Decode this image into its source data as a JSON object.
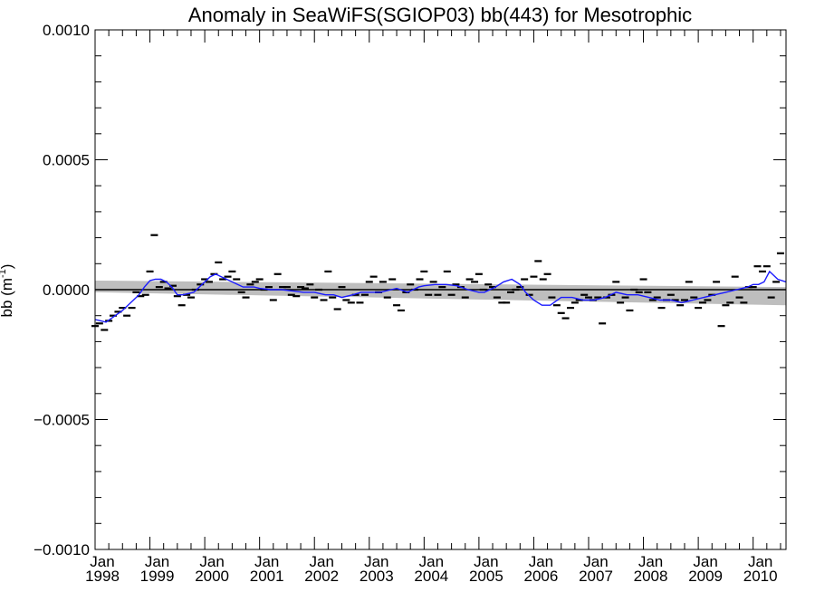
{
  "chart_data": {
    "type": "line",
    "title": "Anomaly in SeaWiFS(SGIOP03) bb(443) for Mesotrophic",
    "ylabel": "bb (m",
    "ylabel_sup": "-1",
    "ylabel_close": ")",
    "xlim": [
      1998.0,
      2010.6
    ],
    "ylim": [
      -0.001,
      0.001
    ],
    "y_ticks": [
      {
        "value": 0.001,
        "label": "0.0010"
      },
      {
        "value": 0.0005,
        "label": "0.0005"
      },
      {
        "value": 0.0,
        "label": "0.0000"
      },
      {
        "value": -0.0005,
        "label": "−0.0005"
      },
      {
        "value": -0.001,
        "label": "−0.0010"
      }
    ],
    "x_ticks": [
      {
        "value": 1998,
        "month": "Jan",
        "year": "1998"
      },
      {
        "value": 1999,
        "month": "Jan",
        "year": "1999"
      },
      {
        "value": 2000,
        "month": "Jan",
        "year": "2000"
      },
      {
        "value": 2001,
        "month": "Jan",
        "year": "2001"
      },
      {
        "value": 2002,
        "month": "Jan",
        "year": "2002"
      },
      {
        "value": 2003,
        "month": "Jan",
        "year": "2003"
      },
      {
        "value": 2004,
        "month": "Jan",
        "year": "2004"
      },
      {
        "value": 2005,
        "month": "Jan",
        "year": "2005"
      },
      {
        "value": 2006,
        "month": "Jan",
        "year": "2006"
      },
      {
        "value": 2007,
        "month": "Jan",
        "year": "2007"
      },
      {
        "value": 2008,
        "month": "Jan",
        "year": "2008"
      },
      {
        "value": 2009,
        "month": "Jan",
        "year": "2009"
      },
      {
        "value": 2010,
        "month": "Jan",
        "year": "2010"
      }
    ],
    "zero_line": 0.0,
    "trend_band": {
      "x": [
        1998.0,
        2010.6
      ],
      "upper": [
        3.5e-05,
        1e-05
      ],
      "lower": [
        -1e-05,
        -6e-05
      ]
    },
    "colors": {
      "smooth": "#1a1aff",
      "band": "#bebebe",
      "marks": "#000000"
    },
    "monthly_anomalies": {
      "x": [
        1998.0,
        1998.08,
        1998.17,
        1998.25,
        1998.33,
        1998.42,
        1998.5,
        1998.58,
        1998.67,
        1998.75,
        1998.83,
        1998.92,
        1999.0,
        1999.08,
        1999.17,
        1999.25,
        1999.33,
        1999.42,
        1999.5,
        1999.58,
        1999.67,
        1999.75,
        1999.83,
        1999.92,
        2000.0,
        2000.08,
        2000.17,
        2000.25,
        2000.33,
        2000.42,
        2000.5,
        2000.58,
        2000.67,
        2000.75,
        2000.83,
        2000.92,
        2001.0,
        2001.08,
        2001.17,
        2001.25,
        2001.33,
        2001.42,
        2001.5,
        2001.58,
        2001.67,
        2001.75,
        2001.83,
        2001.92,
        2002.0,
        2002.08,
        2002.17,
        2002.25,
        2002.33,
        2002.42,
        2002.5,
        2002.58,
        2002.67,
        2002.75,
        2002.83,
        2002.92,
        2003.0,
        2003.08,
        2003.17,
        2003.25,
        2003.33,
        2003.42,
        2003.5,
        2003.58,
        2003.67,
        2003.75,
        2003.83,
        2003.92,
        2004.0,
        2004.08,
        2004.17,
        2004.25,
        2004.33,
        2004.42,
        2004.5,
        2004.58,
        2004.67,
        2004.75,
        2004.83,
        2004.92,
        2005.0,
        2005.08,
        2005.17,
        2005.25,
        2005.33,
        2005.42,
        2005.5,
        2005.58,
        2005.67,
        2005.75,
        2005.83,
        2005.92,
        2006.0,
        2006.08,
        2006.17,
        2006.25,
        2006.33,
        2006.42,
        2006.5,
        2006.58,
        2006.67,
        2006.75,
        2006.83,
        2006.92,
        2007.0,
        2007.08,
        2007.17,
        2007.25,
        2007.33,
        2007.42,
        2007.5,
        2007.58,
        2007.67,
        2007.75,
        2007.83,
        2007.92,
        2008.0,
        2008.08,
        2008.17,
        2008.25,
        2008.33,
        2008.42,
        2008.5,
        2008.58,
        2008.67,
        2008.75,
        2008.83,
        2008.92,
        2009.0,
        2009.08,
        2009.17,
        2009.25,
        2009.33,
        2009.42,
        2009.5,
        2009.58,
        2009.67,
        2009.75,
        2009.83,
        2009.92,
        2010.0,
        2010.08,
        2010.17,
        2010.25,
        2010.33,
        2010.42,
        2010.5
      ],
      "y": [
        -0.00014,
        -0.00013,
        -0.000155,
        -0.00012,
        -0.0001,
        -8.5e-05,
        -7e-05,
        -0.0001,
        -7e-05,
        -1e-05,
        -2.5e-05,
        -2e-05,
        7e-05,
        0.00021,
        1e-05,
        3e-05,
        5e-06,
        1.5e-05,
        -2.5e-05,
        -6e-05,
        -2e-05,
        -3e-05,
        0.0,
        2e-05,
        4e-05,
        3e-05,
        6e-05,
        0.000105,
        4e-05,
        5e-05,
        7e-05,
        4e-05,
        -1e-05,
        -3e-05,
        2e-05,
        3e-05,
        4e-05,
        0.0,
        1e-05,
        -4e-05,
        6e-05,
        1e-05,
        1e-05,
        -2e-05,
        -2.5e-05,
        1e-05,
        5e-06,
        2e-05,
        -3e-05,
        0.0,
        -4e-05,
        7e-05,
        -3e-05,
        -7.5e-05,
        1e-05,
        -4e-05,
        -5e-05,
        -2e-05,
        -5e-05,
        -2e-05,
        3e-05,
        5e-05,
        -1e-05,
        3e-05,
        -3e-05,
        4e-05,
        -6e-05,
        -8e-05,
        -1e-05,
        2e-05,
        0.0,
        4e-05,
        7e-05,
        -2e-05,
        3e-05,
        -2e-05,
        1e-05,
        7e-05,
        -2e-05,
        2e-05,
        1e-05,
        -3e-05,
        4e-05,
        3e-05,
        6e-05,
        0.0,
        2e-05,
        1e-05,
        -3e-05,
        -5e-05,
        -5e-05,
        -1e-05,
        0.0,
        1e-05,
        4e-05,
        -2e-05,
        5e-05,
        0.00011,
        4e-05,
        6e-05,
        -3e-05,
        -6e-05,
        -9e-05,
        -0.00011,
        -7e-05,
        -5e-05,
        -4e-05,
        -2e-05,
        -3e-05,
        -4e-05,
        -3e-05,
        -0.00013,
        -3e-05,
        -2e-05,
        3e-05,
        -5e-05,
        -3e-05,
        -8e-05,
        0.0,
        -1e-05,
        4e-05,
        -1e-05,
        -4e-05,
        -3e-05,
        -7e-05,
        -4e-05,
        -2e-05,
        -4e-05,
        -6e-05,
        -4e-05,
        3e-05,
        -3e-05,
        -7e-05,
        -5e-05,
        -4e-05,
        -2e-05,
        3e-05,
        -0.00014,
        -6e-05,
        -5e-05,
        5e-05,
        -3e-05,
        -5e-05,
        1e-05,
        1e-05,
        9e-05,
        7e-05,
        9e-05,
        -3e-05,
        3e-05,
        0.00014
      ]
    },
    "smoothed_series": {
      "x": [
        1998.0,
        1998.1,
        1998.2,
        1998.3,
        1998.4,
        1998.5,
        1998.6,
        1998.7,
        1998.8,
        1998.9,
        1999.0,
        1999.1,
        1999.2,
        1999.3,
        1999.4,
        1999.5,
        1999.6,
        1999.7,
        1999.8,
        1999.9,
        2000.0,
        2000.1,
        2000.2,
        2000.3,
        2000.4,
        2000.5,
        2000.6,
        2000.7,
        2000.8,
        2000.9,
        2001.0,
        2001.2,
        2001.4,
        2001.6,
        2001.8,
        2002.0,
        2002.2,
        2002.35,
        2002.5,
        2002.7,
        2002.85,
        2003.0,
        2003.2,
        2003.4,
        2003.5,
        2003.7,
        2003.9,
        2004.0,
        2004.2,
        2004.4,
        2004.6,
        2004.8,
        2005.0,
        2005.1,
        2005.3,
        2005.45,
        2005.6,
        2005.75,
        2005.85,
        2006.0,
        2006.15,
        2006.3,
        2006.5,
        2006.7,
        2006.9,
        2007.1,
        2007.3,
        2007.5,
        2007.7,
        2007.9,
        2008.1,
        2008.3,
        2008.5,
        2008.7,
        2008.9,
        2009.1,
        2009.3,
        2009.5,
        2009.7,
        2009.9,
        2010.0,
        2010.1,
        2010.2,
        2010.3,
        2010.45,
        2010.6
      ],
      "y": [
        -0.000115,
        -0.00012,
        -0.000125,
        -0.00011,
        -9.5e-05,
        -8e-05,
        -6e-05,
        -4e-05,
        -2e-05,
        1e-05,
        3.5e-05,
        4e-05,
        4e-05,
        3e-05,
        1e-05,
        -2e-05,
        -2e-05,
        -1.5e-05,
        -1e-05,
        1e-05,
        3e-05,
        5e-05,
        6e-05,
        5e-05,
        4e-05,
        3e-05,
        2e-05,
        1e-05,
        1e-05,
        1e-05,
        5e-06,
        0.0,
        0.0,
        -5e-06,
        -1e-05,
        -1e-05,
        -2e-05,
        -2e-05,
        -3e-05,
        -2e-05,
        -1e-05,
        -1e-05,
        -1e-05,
        0.0,
        5e-06,
        -1e-05,
        1e-05,
        1.5e-05,
        2e-05,
        2e-05,
        1.5e-05,
        0.0,
        -1e-05,
        -1e-05,
        1e-05,
        3e-05,
        4e-05,
        2e-05,
        -1e-05,
        -4e-05,
        -6e-05,
        -6e-05,
        -3e-05,
        -3e-05,
        -4e-05,
        -4e-05,
        -3e-05,
        -1e-05,
        -2e-05,
        -2e-05,
        -3e-05,
        -4e-05,
        -4e-05,
        -5e-05,
        -4e-05,
        -3e-05,
        -2e-05,
        -1e-05,
        0.0,
        1e-05,
        2e-05,
        2e-05,
        3e-05,
        7e-05,
        4e-05,
        3e-05
      ]
    }
  }
}
